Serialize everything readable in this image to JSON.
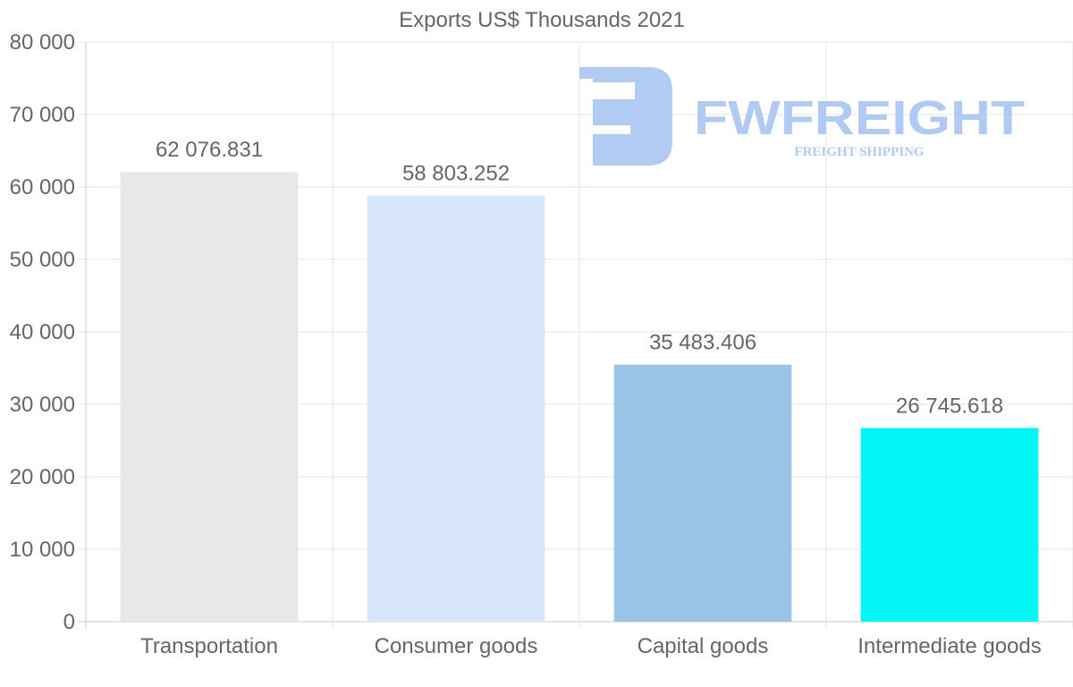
{
  "chart_data": {
    "type": "bar",
    "title": "Exports US$ Thousands 2021",
    "categories": [
      "Transportation",
      "Consumer goods",
      "Capital goods",
      "Intermediate goods"
    ],
    "values": [
      62076.831,
      58803.252,
      35483.406,
      26745.618
    ],
    "value_labels": [
      "62 076.831",
      "58 803.252",
      "35 483.406",
      "26 745.618"
    ],
    "colors": [
      "#e8e8e8",
      "#d7e7f9",
      "#9bc4e7",
      "#04f7f7"
    ],
    "ylim": [
      0,
      80000
    ],
    "yticks": [
      0,
      10000,
      20000,
      30000,
      40000,
      50000,
      60000,
      70000,
      80000
    ],
    "ytick_labels": [
      "0",
      "10 000",
      "20 000",
      "30 000",
      "40 000",
      "50 000",
      "60 000",
      "70 000",
      "80 000"
    ],
    "xlabel": "",
    "ylabel": "",
    "grid": true,
    "legend": "none"
  },
  "watermark": {
    "brand": "FWFREIGHT",
    "tagline": "FREIGHT SHIPPING",
    "color": "#a9c5f2"
  }
}
